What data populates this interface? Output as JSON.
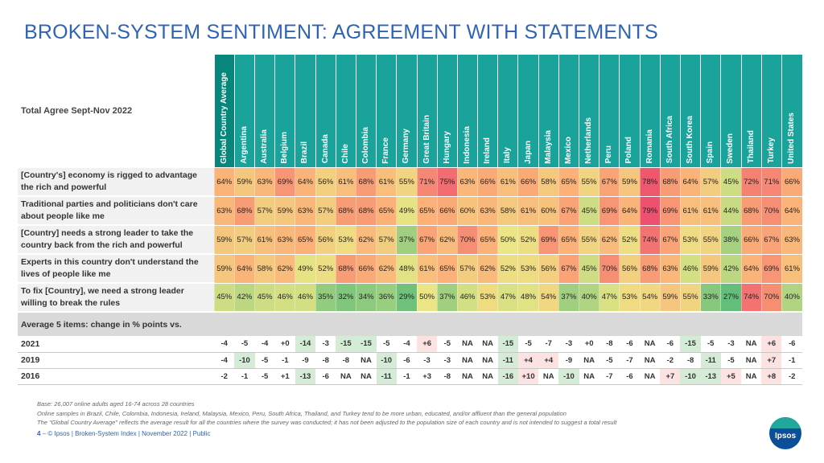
{
  "title": "BROKEN-SYSTEM SENTIMENT: AGREEMENT WITH STATEMENTS",
  "corner_label": "Total Agree Sept-Nov 2022",
  "columns": [
    "Global Country Average",
    "Argentina",
    "Australia",
    "Belgium",
    "Brazil",
    "Canada",
    "Chile",
    "Colombia",
    "France",
    "Germany",
    "Great Britain",
    "Hungary",
    "Indonesia",
    "Ireland",
    "Italy",
    "Japan",
    "Malaysia",
    "Mexico",
    "Netherlands",
    "Peru",
    "Poland",
    "Romania",
    "South Africa",
    "South Korea",
    "Spain",
    "Sweden",
    "Thailand",
    "Turkey",
    "United States"
  ],
  "statements": [
    {
      "label": "[Country's] economy is rigged to advantage the rich and powerful",
      "values": [
        64,
        59,
        63,
        69,
        64,
        56,
        61,
        68,
        61,
        55,
        71,
        75,
        63,
        66,
        61,
        66,
        58,
        65,
        55,
        67,
        59,
        78,
        68,
        64,
        57,
        45,
        72,
        71,
        66
      ]
    },
    {
      "label": "Traditional parties and politicians don't care about people like me",
      "values": [
        63,
        68,
        57,
        59,
        63,
        57,
        68,
        68,
        65,
        49,
        65,
        66,
        60,
        63,
        58,
        61,
        60,
        67,
        45,
        69,
        64,
        79,
        69,
        61,
        61,
        44,
        68,
        70,
        64
      ]
    },
    {
      "label": "[Country] needs a strong leader to take the country back from the rich and powerful",
      "values": [
        59,
        57,
        61,
        63,
        65,
        56,
        53,
        62,
        57,
        37,
        67,
        62,
        70,
        65,
        50,
        52,
        69,
        65,
        55,
        62,
        52,
        74,
        67,
        53,
        55,
        38,
        66,
        67,
        63
      ]
    },
    {
      "label": "Experts in this country don't understand the lives of people like me",
      "values": [
        59,
        64,
        58,
        62,
        49,
        52,
        68,
        66,
        62,
        48,
        61,
        65,
        57,
        62,
        52,
        53,
        56,
        67,
        45,
        70,
        56,
        68,
        63,
        46,
        59,
        42,
        64,
        69,
        61
      ]
    },
    {
      "label": "To fix [Country], we need a strong leader willing to break the rules",
      "values": [
        45,
        42,
        45,
        46,
        46,
        35,
        32,
        34,
        36,
        29,
        50,
        37,
        46,
        53,
        47,
        48,
        54,
        37,
        40,
        47,
        53,
        54,
        59,
        55,
        33,
        27,
        74,
        70,
        40
      ]
    }
  ],
  "average_label": "Average 5 items: change in % points vs.",
  "changes": [
    {
      "year": "2021",
      "values": [
        "-4",
        "-5",
        "-4",
        "+0",
        "-14",
        "-3",
        "-15",
        "-15",
        "-5",
        "-4",
        "+6",
        "-5",
        "NA",
        "NA",
        "-15",
        "-5",
        "-7",
        "-3",
        "+0",
        "-8",
        "-6",
        "NA",
        "-6",
        "-15",
        "-5",
        "-3",
        "NA",
        "+6",
        "-6"
      ]
    },
    {
      "year": "2019",
      "values": [
        "-4",
        "-10",
        "-5",
        "-1",
        "-9",
        "-8",
        "-8",
        "NA",
        "-10",
        "-6",
        "-3",
        "-3",
        "NA",
        "NA",
        "-11",
        "+4",
        "+4",
        "-9",
        "NA",
        "-5",
        "-7",
        "NA",
        "-2",
        "-8",
        "-11",
        "-5",
        "NA",
        "+7",
        "-1"
      ]
    },
    {
      "year": "2016",
      "values": [
        "-2",
        "-1",
        "-5",
        "+1",
        "-13",
        "-6",
        "NA",
        "NA",
        "-11",
        "-1",
        "+3",
        "-8",
        "NA",
        "NA",
        "-16",
        "+10",
        "NA",
        "-10",
        "NA",
        "-7",
        "-6",
        "NA",
        "+7",
        "-10",
        "-13",
        "+5",
        "NA",
        "+8",
        "-2"
      ]
    }
  ],
  "footnotes": [
    "Base: 26,007 online adults aged 16-74 across 28 countries",
    "Online samples in Brazil, Chile, Colombia, Indonesia, Ireland, Malaysia, Mexico, Peru, South Africa, Thailand, and Turkey tend to be more urban, educated, and/or affluent than the general population",
    "The \"Global Country Average\" reflects the average result for all the countries where the survey was conducted; it has not been adjusted to the population size of each country and is not intended to suggest a total result"
  ],
  "footer": {
    "page": "4",
    "text": "– © Ipsos | Broken-System Index | November 2022 | Public"
  },
  "logo_text": "Ipsos",
  "colors": {
    "title": "#2f63b4",
    "header": "#1aa39a",
    "header_global": "#07877b",
    "positive_change": "#fde2e2",
    "negative_change": "#d4ecd6"
  }
}
